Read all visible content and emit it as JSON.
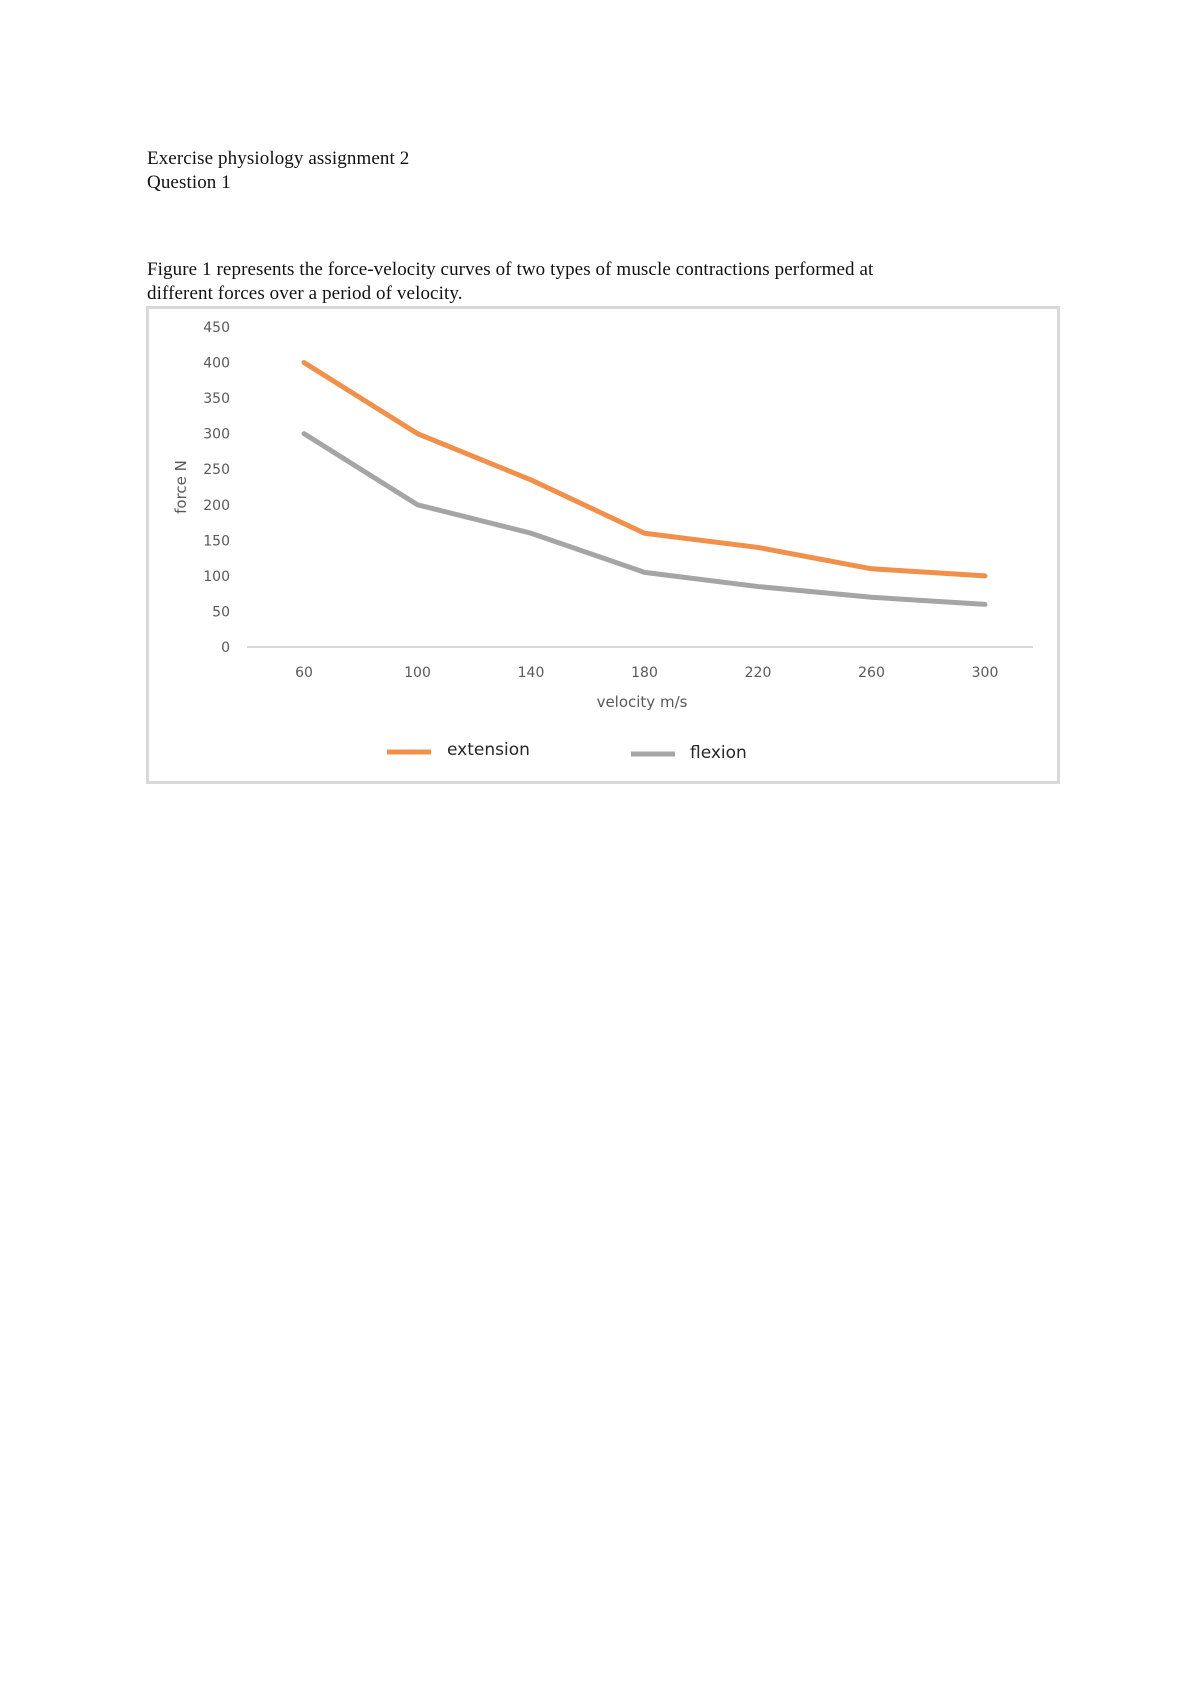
{
  "document": {
    "title": "Exercise physiology assignment 2",
    "question": "Question 1",
    "caption_line1": "Figure 1 represents the force-velocity curves of two types of muscle contractions performed at",
    "caption_line2": "different forces over a period of velocity."
  },
  "chart_data": {
    "type": "line",
    "title": "",
    "xlabel": "velocity m/s",
    "ylabel": "force N",
    "categories": [
      "60",
      "100",
      "140",
      "180",
      "220",
      "260",
      "300"
    ],
    "x": [
      60,
      100,
      140,
      180,
      220,
      260,
      300
    ],
    "series": [
      {
        "name": "extension",
        "color": "#F0904A",
        "values": [
          400,
          300,
          235,
          160,
          140,
          110,
          100
        ]
      },
      {
        "name": "flexion",
        "color": "#A5A5A5",
        "values": [
          300,
          200,
          160,
          105,
          85,
          70,
          60
        ]
      }
    ],
    "yticks": [
      "0",
      "50",
      "100",
      "150",
      "200",
      "250",
      "300",
      "350",
      "400",
      "450"
    ],
    "ylim": [
      0,
      450
    ],
    "grid": false,
    "legend_position": "bottom"
  }
}
